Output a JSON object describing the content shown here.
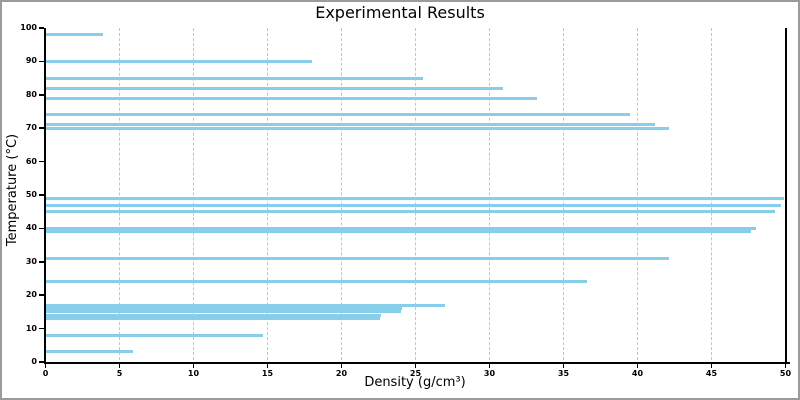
{
  "chart_data": {
    "type": "bar",
    "orientation": "horizontal",
    "title": "Experimental Results",
    "xlabel": "Density (g/cm³)",
    "ylabel": "Temperature (°C)",
    "xlim": [
      0,
      50
    ],
    "ylim": [
      0,
      100
    ],
    "x_ticks": [
      0,
      5,
      10,
      15,
      20,
      25,
      30,
      35,
      40,
      45,
      50
    ],
    "y_ticks": [
      0,
      10,
      20,
      30,
      40,
      50,
      60,
      70,
      80,
      90,
      100
    ],
    "grid": "vertical dashed gridlines at interior x ticks",
    "legend": "none",
    "bar_color": "#87CEEB",
    "grid_color": "#c3c3c3",
    "axis_color": "#000000",
    "frame_color": "#9b9b9b",
    "points": [
      {
        "temperature": 98,
        "density": 3.9
      },
      {
        "temperature": 90,
        "density": 18.0
      },
      {
        "temperature": 85,
        "density": 25.5
      },
      {
        "temperature": 82,
        "density": 30.9
      },
      {
        "temperature": 79,
        "density": 33.2
      },
      {
        "temperature": 74,
        "density": 39.5
      },
      {
        "temperature": 71,
        "density": 41.2
      },
      {
        "temperature": 70,
        "density": 42.1
      },
      {
        "temperature": 49,
        "density": 49.9
      },
      {
        "temperature": 47,
        "density": 49.7
      },
      {
        "temperature": 45,
        "density": 49.3
      },
      {
        "temperature": 40,
        "density": 48.0
      },
      {
        "temperature": 39,
        "density": 47.7
      },
      {
        "temperature": 31,
        "density": 42.1
      },
      {
        "temperature": 24,
        "density": 36.6
      },
      {
        "temperature": 17,
        "density": 27.0
      },
      {
        "temperature": 16,
        "density": 24.1
      },
      {
        "temperature": 15,
        "density": 24.0
      },
      {
        "temperature": 14,
        "density": 22.7
      },
      {
        "temperature": 13,
        "density": 22.6
      },
      {
        "temperature": 8,
        "density": 14.7
      },
      {
        "temperature": 3,
        "density": 5.9
      }
    ]
  }
}
